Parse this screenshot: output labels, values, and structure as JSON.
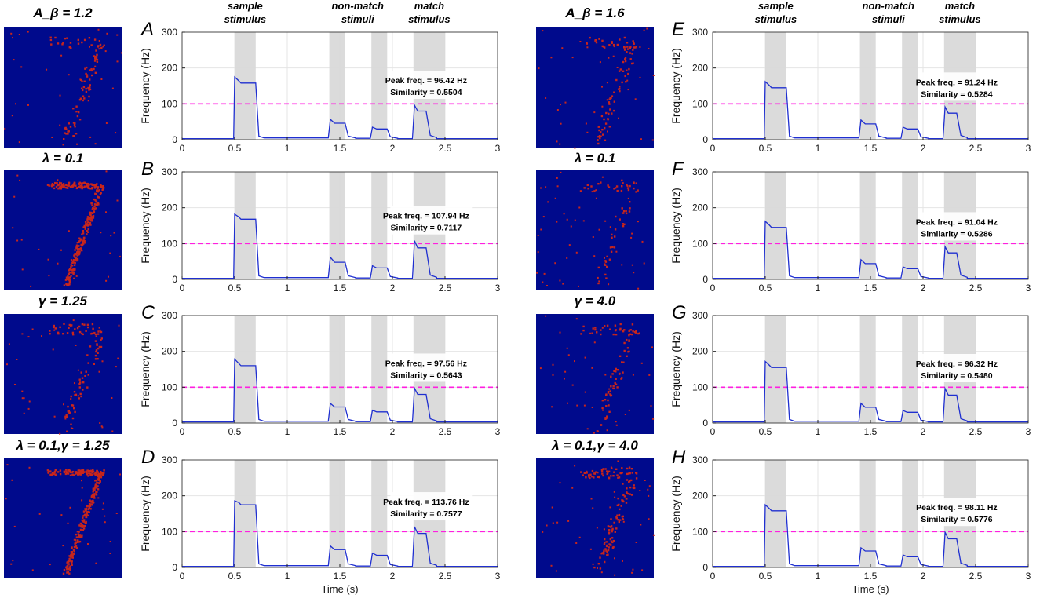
{
  "figure": {
    "x_axis_label": "Time (s)",
    "y_axis_label": "Frequency (Hz)",
    "header_labels": {
      "sample": [
        "sample",
        "stimulus"
      ],
      "nonmatch": [
        "non-match",
        "stimuli"
      ],
      "match": [
        "match",
        "stimulus"
      ]
    },
    "peak_prefix": "Peak freq. = ",
    "similarity_prefix": "Similarity = ",
    "colors": {
      "image_background": "#000a8c",
      "image_dots": "#c8261c",
      "trace": "#1f2fd0",
      "threshold": "#ff1fe0",
      "stimulus_shade": "#d9d9d9"
    }
  },
  "images": [
    {
      "label": "A_β = 1.2",
      "density": "sparse"
    },
    {
      "label": "λ = 0.1",
      "density": "dense"
    },
    {
      "label": "γ = 1.25",
      "density": "sparse"
    },
    {
      "label": "λ = 0.1,γ = 1.25",
      "density": "dense"
    },
    {
      "label": "A_β = 1.6",
      "density": "sparse"
    },
    {
      "label": "λ = 0.1",
      "density": "faint"
    },
    {
      "label": "γ = 4.0",
      "density": "sparse"
    },
    {
      "label": "λ = 0.1,γ = 4.0",
      "density": "medium"
    }
  ],
  "chart_data": [
    {
      "type": "line",
      "panel": "A",
      "xlabel": "",
      "ylabel": "Frequency (Hz)",
      "xlim": [
        0,
        3
      ],
      "ylim": [
        0,
        300
      ],
      "xticks": [
        0,
        0.5,
        1,
        1.5,
        2,
        2.5,
        3
      ],
      "yticks": [
        0,
        100,
        200,
        300
      ],
      "threshold": 100,
      "stimulus_windows": [
        [
          0.5,
          0.7
        ],
        [
          1.4,
          1.55
        ],
        [
          1.8,
          1.95
        ],
        [
          2.2,
          2.5
        ]
      ],
      "responses": {
        "sample": [
          175,
          158
        ],
        "nm1": [
          57,
          46
        ],
        "nm2": [
          35,
          30
        ],
        "match": [
          96.42,
          80
        ]
      },
      "baseline": 3,
      "peak_freq": "96.42 Hz",
      "similarity": "0.5504"
    },
    {
      "type": "line",
      "panel": "B",
      "xlabel": "",
      "ylabel": "Frequency (Hz)",
      "xlim": [
        0,
        3
      ],
      "ylim": [
        0,
        300
      ],
      "xticks": [
        0,
        0.5,
        1,
        1.5,
        2,
        2.5,
        3
      ],
      "yticks": [
        0,
        100,
        200,
        300
      ],
      "threshold": 100,
      "stimulus_windows": [
        [
          0.5,
          0.7
        ],
        [
          1.4,
          1.55
        ],
        [
          1.8,
          1.95
        ],
        [
          2.2,
          2.5
        ]
      ],
      "responses": {
        "sample": [
          182,
          168
        ],
        "nm1": [
          62,
          48
        ],
        "nm2": [
          38,
          32
        ],
        "match": [
          107.94,
          88
        ]
      },
      "baseline": 3,
      "peak_freq": "107.94 Hz",
      "similarity": "0.7117"
    },
    {
      "type": "line",
      "panel": "C",
      "xlabel": "",
      "ylabel": "Frequency (Hz)",
      "xlim": [
        0,
        3
      ],
      "ylim": [
        0,
        300
      ],
      "xticks": [
        0,
        0.5,
        1,
        1.5,
        2,
        2.5,
        3
      ],
      "yticks": [
        0,
        100,
        200,
        300
      ],
      "threshold": 100,
      "stimulus_windows": [
        [
          0.5,
          0.7
        ],
        [
          1.4,
          1.55
        ],
        [
          1.8,
          1.95
        ],
        [
          2.2,
          2.5
        ]
      ],
      "responses": {
        "sample": [
          178,
          160
        ],
        "nm1": [
          55,
          45
        ],
        "nm2": [
          36,
          31
        ],
        "match": [
          97.56,
          80
        ]
      },
      "baseline": 3,
      "peak_freq": "97.56 Hz",
      "similarity": "0.5643"
    },
    {
      "type": "line",
      "panel": "D",
      "xlabel": "Time (s)",
      "ylabel": "Frequency (Hz)",
      "xlim": [
        0,
        3
      ],
      "ylim": [
        0,
        300
      ],
      "xticks": [
        0,
        0.5,
        1,
        1.5,
        2,
        2.5,
        3
      ],
      "yticks": [
        0,
        100,
        200,
        300
      ],
      "threshold": 100,
      "stimulus_windows": [
        [
          0.5,
          0.7
        ],
        [
          1.4,
          1.55
        ],
        [
          1.8,
          1.95
        ],
        [
          2.2,
          2.5
        ]
      ],
      "responses": {
        "sample": [
          186,
          175
        ],
        "nm1": [
          60,
          50
        ],
        "nm2": [
          40,
          34
        ],
        "match": [
          113.76,
          95
        ]
      },
      "baseline": 3,
      "peak_freq": "113.76 Hz",
      "similarity": "0.7577"
    },
    {
      "type": "line",
      "panel": "E",
      "xlabel": "",
      "ylabel": "Frequency (Hz)",
      "xlim": [
        0,
        3
      ],
      "ylim": [
        0,
        300
      ],
      "xticks": [
        0,
        0.5,
        1,
        1.5,
        2,
        2.5,
        3
      ],
      "yticks": [
        0,
        100,
        200,
        300
      ],
      "threshold": 100,
      "stimulus_windows": [
        [
          0.5,
          0.7
        ],
        [
          1.4,
          1.55
        ],
        [
          1.8,
          1.95
        ],
        [
          2.2,
          2.5
        ]
      ],
      "responses": {
        "sample": [
          162,
          145
        ],
        "nm1": [
          55,
          44
        ],
        "nm2": [
          35,
          30
        ],
        "match": [
          91.24,
          74
        ]
      },
      "baseline": 3,
      "peak_freq": "91.24 Hz",
      "similarity": "0.5284"
    },
    {
      "type": "line",
      "panel": "F",
      "xlabel": "",
      "ylabel": "Frequency (Hz)",
      "xlim": [
        0,
        3
      ],
      "ylim": [
        0,
        300
      ],
      "xticks": [
        0,
        0.5,
        1,
        1.5,
        2,
        2.5,
        3
      ],
      "yticks": [
        0,
        100,
        200,
        300
      ],
      "threshold": 100,
      "stimulus_windows": [
        [
          0.5,
          0.7
        ],
        [
          1.4,
          1.55
        ],
        [
          1.8,
          1.95
        ],
        [
          2.2,
          2.5
        ]
      ],
      "responses": {
        "sample": [
          162,
          145
        ],
        "nm1": [
          55,
          44
        ],
        "nm2": [
          35,
          30
        ],
        "match": [
          91.04,
          74
        ]
      },
      "baseline": 3,
      "peak_freq": "91.04 Hz",
      "similarity": "0.5286"
    },
    {
      "type": "line",
      "panel": "G",
      "xlabel": "",
      "ylabel": "Frequency (Hz)",
      "xlim": [
        0,
        3
      ],
      "ylim": [
        0,
        300
      ],
      "xticks": [
        0,
        0.5,
        1,
        1.5,
        2,
        2.5,
        3
      ],
      "yticks": [
        0,
        100,
        200,
        300
      ],
      "threshold": 100,
      "stimulus_windows": [
        [
          0.5,
          0.7
        ],
        [
          1.4,
          1.55
        ],
        [
          1.8,
          1.95
        ],
        [
          2.2,
          2.5
        ]
      ],
      "responses": {
        "sample": [
          172,
          155
        ],
        "nm1": [
          55,
          44
        ],
        "nm2": [
          35,
          30
        ],
        "match": [
          96.32,
          78
        ]
      },
      "baseline": 3,
      "peak_freq": "96.32 Hz",
      "similarity": "0.5480"
    },
    {
      "type": "line",
      "panel": "H",
      "xlabel": "Time (s)",
      "ylabel": "Frequency (Hz)",
      "xlim": [
        0,
        3
      ],
      "ylim": [
        0,
        300
      ],
      "xticks": [
        0,
        0.5,
        1,
        1.5,
        2,
        2.5,
        3
      ],
      "yticks": [
        0,
        100,
        200,
        300
      ],
      "threshold": 100,
      "stimulus_windows": [
        [
          0.5,
          0.7
        ],
        [
          1.4,
          1.55
        ],
        [
          1.8,
          1.95
        ],
        [
          2.2,
          2.5
        ]
      ],
      "responses": {
        "sample": [
          175,
          158
        ],
        "nm1": [
          55,
          46
        ],
        "nm2": [
          35,
          30
        ],
        "match": [
          98.11,
          80
        ]
      },
      "baseline": 3,
      "peak_freq": "98.11 Hz",
      "similarity": "0.5776"
    }
  ]
}
